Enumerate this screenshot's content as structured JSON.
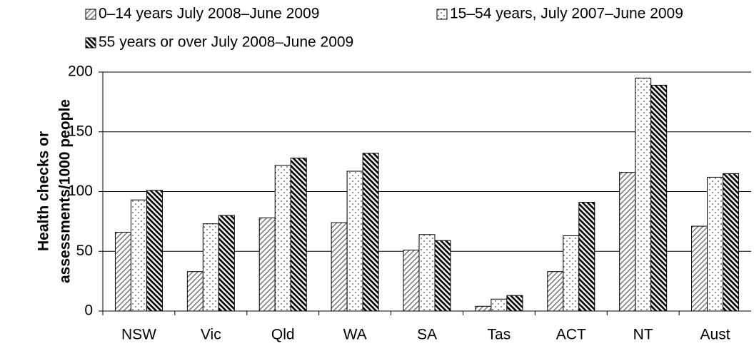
{
  "chart_data": {
    "type": "bar",
    "y_label": [
      "Health checks or",
      "assessments/1000 people"
    ],
    "categories": [
      "NSW",
      "Vic",
      "Qld",
      "WA",
      "SA",
      "Tas",
      "ACT",
      "NT",
      "Aust"
    ],
    "series": [
      {
        "name": "0–14 years July 2008–June 2009",
        "color": "#808080",
        "values": [
          66,
          33,
          78,
          74,
          51,
          4,
          33,
          116,
          71
        ]
      },
      {
        "name": "15–54 years, July 2007–June 2009",
        "color": "#404040",
        "values": [
          93,
          73,
          122,
          117,
          64,
          10,
          63,
          195,
          112
        ]
      },
      {
        "name": "55 years or over July 2008–June 2009",
        "color": "#000000",
        "values": [
          101,
          80,
          128,
          132,
          59,
          13,
          91,
          189,
          115
        ]
      }
    ],
    "ylim": [
      0,
      200
    ],
    "yticks": [
      0,
      50,
      100,
      150,
      200
    ],
    "grid": true
  }
}
